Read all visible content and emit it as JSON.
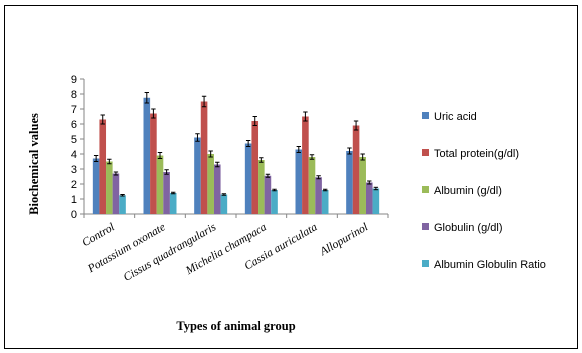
{
  "chart_data": {
    "type": "bar",
    "title": "",
    "xlabel": "Types of animal group",
    "ylabel": "Biochemical values",
    "ylim": [
      0,
      9
    ],
    "yticks": [
      0,
      1,
      2,
      3,
      4,
      5,
      6,
      7,
      8,
      9
    ],
    "grid": false,
    "legend_position": "right",
    "error_bars": true,
    "categories": [
      "Control",
      "Potassium oxonate",
      "Cissus quadrangularis",
      "Michelia champaca",
      "Cassia auriculata",
      "Allopurinol"
    ],
    "series": [
      {
        "name": "Uric acid",
        "color": "#4f81bd",
        "values": [
          3.7,
          7.75,
          5.1,
          4.7,
          4.3,
          4.2
        ],
        "errors": [
          0.2,
          0.35,
          0.25,
          0.2,
          0.2,
          0.2
        ]
      },
      {
        "name": "Total protein(g/dl)",
        "color": "#c0504d",
        "values": [
          6.3,
          6.7,
          7.5,
          6.2,
          6.5,
          5.9
        ],
        "errors": [
          0.3,
          0.3,
          0.35,
          0.3,
          0.3,
          0.3
        ]
      },
      {
        "name": "Albumin (g/dl)",
        "color": "#9bbb59",
        "values": [
          3.5,
          3.9,
          4.0,
          3.6,
          3.8,
          3.8
        ],
        "errors": [
          0.15,
          0.2,
          0.2,
          0.15,
          0.15,
          0.2
        ]
      },
      {
        "name": "Globulin (g/dl)",
        "color": "#8064a2",
        "values": [
          2.7,
          2.8,
          3.3,
          2.55,
          2.45,
          2.1
        ],
        "errors": [
          0.1,
          0.15,
          0.15,
          0.1,
          0.1,
          0.1
        ]
      },
      {
        "name": "Albumin Globulin Ratio",
        "color": "#4bacc6",
        "values": [
          1.25,
          1.4,
          1.3,
          1.6,
          1.6,
          1.7
        ],
        "errors": [
          0.05,
          0.05,
          0.05,
          0.05,
          0.05,
          0.08
        ]
      }
    ]
  }
}
